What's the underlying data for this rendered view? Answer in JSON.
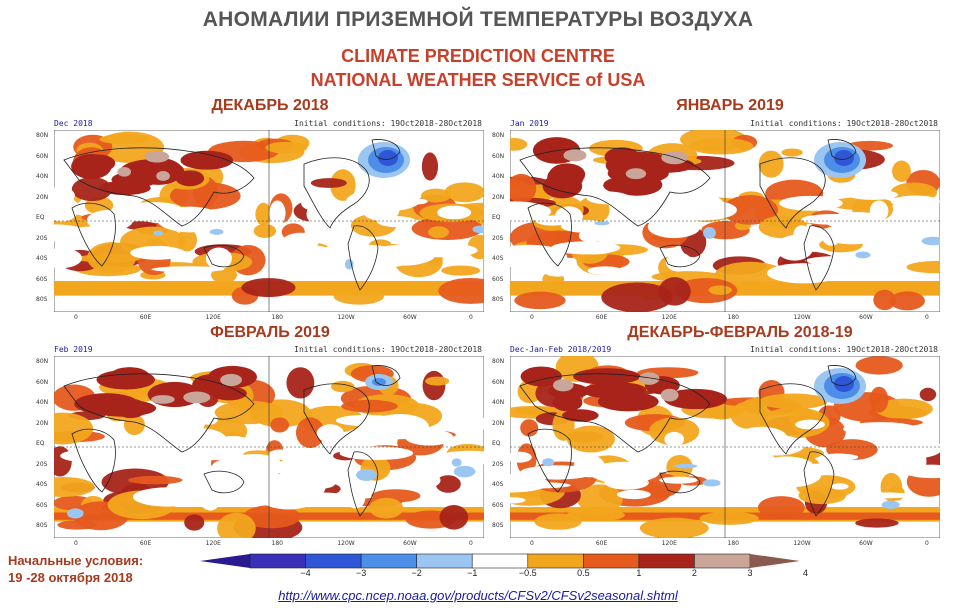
{
  "header": {
    "title": "АНОМАЛИИ ПРИЗЕМНОЙ ТЕМПЕРАТУРЫ ВОЗДУХА",
    "subtitle_line1": "CLIMATE PREDICTION CENTRE",
    "subtitle_line2": "NATIONAL WEATHER SERVICE of USA"
  },
  "panels": [
    {
      "title": "ДЕКАБРЬ 2018",
      "period": "Dec 2018",
      "init": "Initial conditions: 19Oct2018-28Oct2018"
    },
    {
      "title": "ЯНВАРЬ 2019",
      "period": "Jan 2019",
      "init": "Initial conditions: 19Oct2018-28Oct2018"
    },
    {
      "title": "ФЕВРАЛЬ 2019",
      "period": "Feb 2019",
      "init": "Initial conditions: 19Oct2018-28Oct2018"
    },
    {
      "title": "ДЕКАБРЬ-ФЕВРАЛЬ 2018-19",
      "period": "Dec-Jan-Feb 2018/2019",
      "init": "Initial conditions: 19Oct2018-28Oct2018"
    }
  ],
  "axes": {
    "lat_labels": [
      "80N",
      "60N",
      "40N",
      "20N",
      "EQ",
      "20S",
      "40S",
      "60S",
      "80S"
    ],
    "lon_labels": [
      "0",
      "60E",
      "120E",
      "180",
      "120W",
      "60W",
      "0"
    ]
  },
  "footer": {
    "note_line1": "Начальные условия:",
    "note_line2": "19 -28 октября 2018",
    "url": "http://www.cpc.ncep.noaa.gov/products/CFSv2/CFSv2seasonal.shtml"
  },
  "colorbar": {
    "ticks": [
      "−4",
      "−3",
      "−2",
      "−1",
      "−0.5",
      "0.5",
      "1",
      "2",
      "3",
      "4"
    ],
    "colors": [
      "#3a2fb8",
      "#2f56d6",
      "#4d8ee8",
      "#9cc6f2",
      "#ffffff",
      "#f2a61e",
      "#e65a1e",
      "#a8241a",
      "#c9a59a"
    ],
    "left_tip": "#2a1a90",
    "right_tip": "#8a5a50"
  },
  "anomaly_colors": {
    "warm_light": "#f2a61e",
    "warm": "#e65a1e",
    "warm_strong": "#a8241a",
    "warm_extreme": "#c9a59a",
    "cold_light": "#9cc6f2",
    "cold": "#4d8ee8",
    "cold_strong": "#2f56d6"
  }
}
